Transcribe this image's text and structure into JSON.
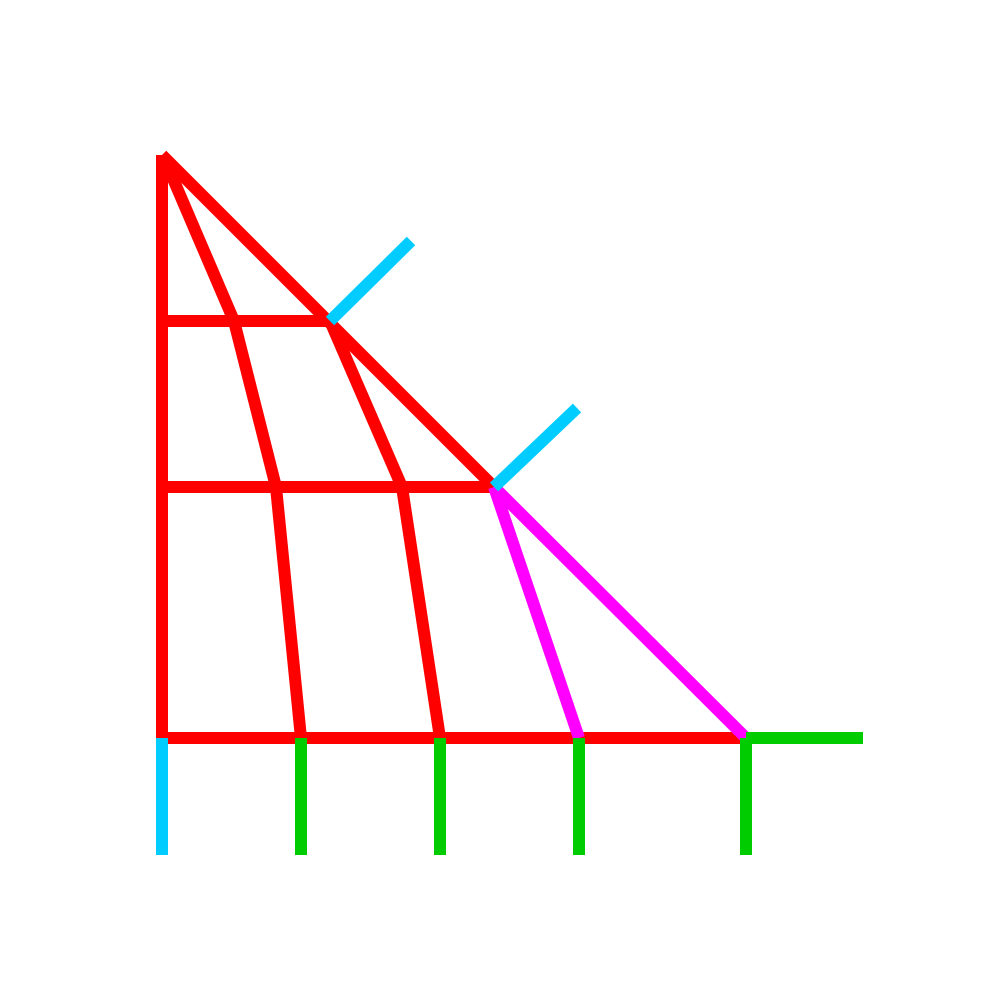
{
  "colors": {
    "frame": "#ff0000",
    "highlight": "#ff00ff",
    "tick_cyan": "#00ccff",
    "tick_green": "#00cc00",
    "background": "#ffffff"
  }
}
